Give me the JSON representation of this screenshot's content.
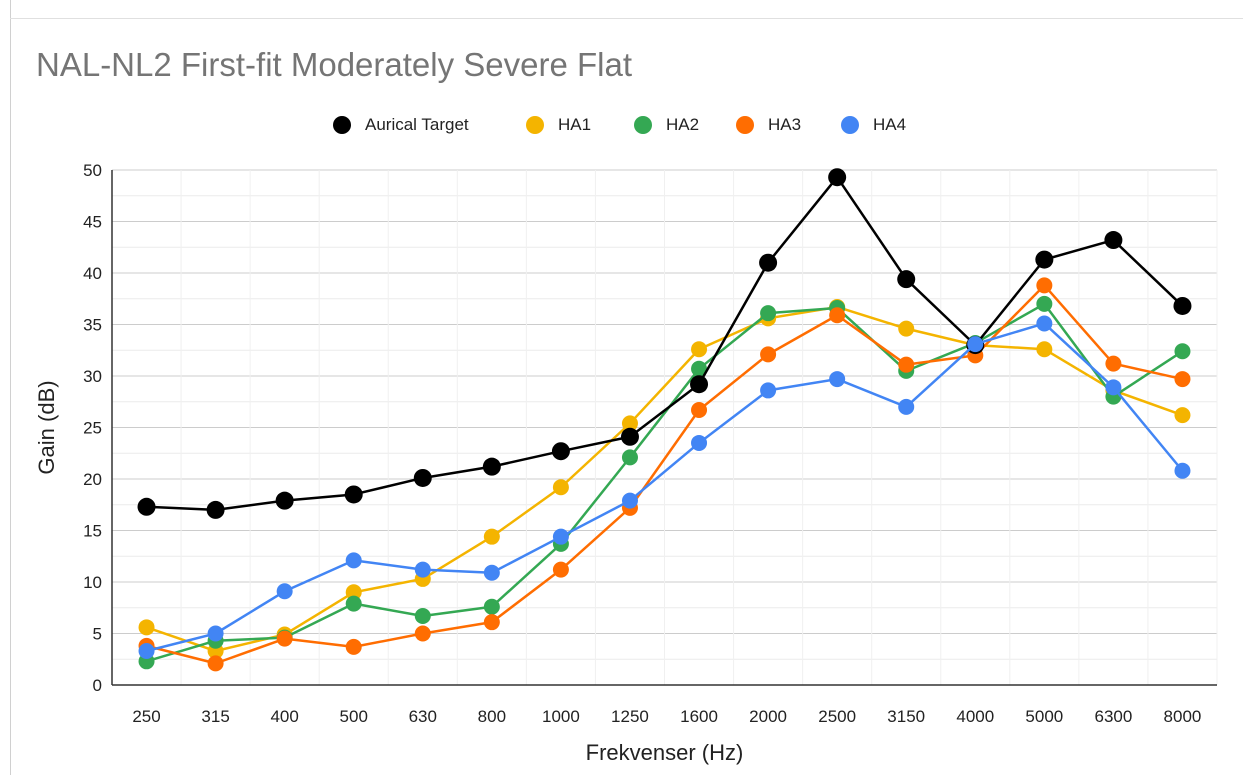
{
  "chart_data": {
    "type": "line",
    "title": "NAL-NL2 First-fit Moderately Severe Flat",
    "xlabel": "Frekvenser (Hz)",
    "ylabel": "Gain (dB)",
    "categories": [
      "250",
      "315",
      "400",
      "500",
      "630",
      "800",
      "1000",
      "1250",
      "1600",
      "2000",
      "2500",
      "3150",
      "4000",
      "5000",
      "6300",
      "8000"
    ],
    "ylim": [
      0,
      50
    ],
    "yticks": [
      0,
      5,
      10,
      15,
      20,
      25,
      30,
      35,
      40,
      45,
      50
    ],
    "grid": true,
    "legend_position": "top",
    "series": [
      {
        "name": "Aurical Target",
        "color": "#000000",
        "values": [
          17.3,
          17.0,
          17.9,
          18.5,
          20.1,
          21.2,
          22.7,
          24.1,
          29.2,
          41.0,
          49.3,
          39.4,
          33.0,
          41.3,
          43.2,
          36.8
        ]
      },
      {
        "name": "HA1",
        "color": "#f4b400",
        "values": [
          5.6,
          3.3,
          4.9,
          9.0,
          10.3,
          14.4,
          19.2,
          25.4,
          32.6,
          35.6,
          36.7,
          34.6,
          33.0,
          32.6,
          28.6,
          26.2
        ]
      },
      {
        "name": "HA2",
        "color": "#34a853",
        "values": [
          2.3,
          4.3,
          4.6,
          7.9,
          6.7,
          7.6,
          13.7,
          22.1,
          30.7,
          36.1,
          36.6,
          30.5,
          33.2,
          37.0,
          28.0,
          32.4
        ]
      },
      {
        "name": "HA3",
        "color": "#ff6d01",
        "values": [
          3.8,
          2.1,
          4.5,
          3.7,
          5.0,
          6.1,
          11.2,
          17.2,
          26.7,
          32.1,
          35.9,
          31.1,
          32.0,
          38.8,
          31.2,
          29.7
        ]
      },
      {
        "name": "HA4",
        "color": "#4285f4",
        "values": [
          3.3,
          5.0,
          9.1,
          12.1,
          11.2,
          10.9,
          14.4,
          17.9,
          23.5,
          28.6,
          29.7,
          27.0,
          33.1,
          35.1,
          28.9,
          20.8
        ]
      }
    ]
  }
}
